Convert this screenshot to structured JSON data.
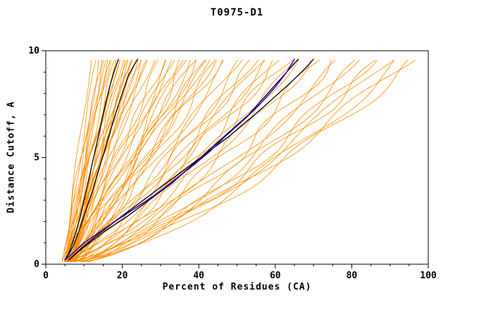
{
  "chart_data": {
    "type": "line",
    "title": "T0975-D1",
    "xlabel": "Percent of Residues (CA)",
    "ylabel": "Distance Cutoff, A",
    "xlim": [
      0,
      100
    ],
    "ylim": [
      0,
      10
    ],
    "x_ticks": [
      0,
      20,
      40,
      60,
      80,
      100
    ],
    "x_minor_step": 5,
    "y_ticks": [
      0,
      5,
      10
    ],
    "y_minor_step": 1,
    "y_top": 9.6,
    "grid": false,
    "legend": "none",
    "colors": {
      "model": "#ff8c00",
      "reference": "#000000",
      "highlight": "#2b00cc",
      "axis": "#000000"
    },
    "model_curves": [
      [
        5,
        12,
        1.2
      ],
      [
        5.5,
        13,
        1.15
      ],
      [
        6,
        14,
        1.1
      ],
      [
        4.5,
        15,
        1.25
      ],
      [
        5,
        15,
        1.0
      ],
      [
        6,
        16,
        1.2
      ],
      [
        5.5,
        16,
        1.05
      ],
      [
        6.5,
        17,
        1.15
      ],
      [
        5,
        17,
        1.3
      ],
      [
        6,
        18,
        1.1
      ],
      [
        7,
        18,
        0.95
      ],
      [
        5.5,
        19,
        1.2
      ],
      [
        6.5,
        19,
        1.05
      ],
      [
        5,
        20,
        1.25
      ],
      [
        7,
        20,
        1.1
      ],
      [
        6,
        21,
        1.0
      ],
      [
        7.5,
        21,
        1.15
      ],
      [
        5.5,
        22,
        1.2
      ],
      [
        6.5,
        22,
        1.0
      ],
      [
        6,
        23,
        1.1
      ],
      [
        7,
        23,
        1.25
      ],
      [
        5.5,
        24,
        1.05
      ],
      [
        6.5,
        24,
        1.15
      ],
      [
        6,
        25,
        1.0
      ],
      [
        7,
        25,
        1.2
      ],
      [
        6.5,
        26,
        1.1
      ],
      [
        6,
        27,
        1.05
      ],
      [
        7,
        28,
        1.15
      ],
      [
        5,
        30,
        0.95
      ],
      [
        6,
        31,
        1.05
      ],
      [
        5.5,
        32,
        0.9
      ],
      [
        6.5,
        33,
        1.0
      ],
      [
        5,
        34,
        1.1
      ],
      [
        6,
        35,
        0.95
      ],
      [
        7,
        36,
        0.85
      ],
      [
        5.5,
        37,
        1.0
      ],
      [
        6.5,
        38,
        0.9
      ],
      [
        6,
        39,
        1.05
      ],
      [
        5,
        40,
        0.95
      ],
      [
        7,
        41,
        0.85
      ],
      [
        6,
        42,
        1.0
      ],
      [
        5.5,
        43,
        0.9
      ],
      [
        6.5,
        44,
        0.95
      ],
      [
        6,
        45,
        0.85
      ],
      [
        5,
        46,
        1.0
      ],
      [
        6.5,
        48,
        0.9
      ],
      [
        6,
        50,
        0.85
      ],
      [
        5.5,
        52,
        0.85
      ],
      [
        6,
        54,
        0.8
      ],
      [
        6.5,
        55,
        0.9
      ],
      [
        5,
        57,
        0.8
      ],
      [
        6,
        58,
        0.85
      ],
      [
        6.5,
        60,
        0.75
      ],
      [
        5.5,
        61,
        0.85
      ],
      [
        6,
        63,
        0.8
      ],
      [
        5,
        65,
        0.75
      ],
      [
        6.5,
        67,
        0.8
      ],
      [
        6,
        69,
        0.75
      ],
      [
        5.5,
        72,
        0.75
      ],
      [
        6,
        75,
        0.7
      ],
      [
        5,
        78,
        0.75
      ],
      [
        6.5,
        80,
        0.7
      ],
      [
        6,
        83,
        0.72
      ],
      [
        5.5,
        85,
        0.68
      ],
      [
        6,
        88,
        0.72
      ],
      [
        5,
        90,
        0.7
      ],
      [
        6,
        93,
        0.68
      ],
      [
        5.5,
        95,
        0.72
      ],
      [
        6,
        97,
        0.7
      ]
    ],
    "reference_curves": [
      [
        [
          5,
          0.2
        ],
        [
          6,
          0.5
        ],
        [
          7,
          1
        ],
        [
          8,
          1.6
        ],
        [
          9,
          2.2
        ],
        [
          10,
          3
        ],
        [
          11,
          3.8
        ],
        [
          12,
          4.6
        ],
        [
          13,
          5.4
        ],
        [
          14,
          6.2
        ],
        [
          15,
          7
        ],
        [
          16,
          7.8
        ],
        [
          17,
          8.5
        ],
        [
          18,
          9.1
        ],
        [
          19,
          9.6
        ]
      ],
      [
        [
          5,
          0.2
        ],
        [
          6.5,
          0.6
        ],
        [
          8,
          1.2
        ],
        [
          9.5,
          2
        ],
        [
          11,
          2.8
        ],
        [
          12.5,
          3.6
        ],
        [
          14,
          4.5
        ],
        [
          15.5,
          5.4
        ],
        [
          17,
          6.3
        ],
        [
          18.5,
          7.2
        ],
        [
          20,
          8
        ],
        [
          21.5,
          8.8
        ],
        [
          23,
          9.3
        ],
        [
          24,
          9.6
        ]
      ],
      [
        [
          6,
          0.2
        ],
        [
          10,
          0.8
        ],
        [
          15,
          1.5
        ],
        [
          21,
          2.2
        ],
        [
          27,
          3
        ],
        [
          33,
          3.8
        ],
        [
          38,
          4.6
        ],
        [
          43,
          5.4
        ],
        [
          48,
          6.2
        ],
        [
          53,
          7
        ],
        [
          57,
          7.8
        ],
        [
          61,
          8.6
        ],
        [
          64,
          9.2
        ],
        [
          66,
          9.6
        ]
      ],
      [
        [
          6,
          0.2
        ],
        [
          9,
          0.7
        ],
        [
          13,
          1.3
        ],
        [
          18,
          2
        ],
        [
          24,
          2.8
        ],
        [
          30,
          3.6
        ],
        [
          36,
          4.4
        ],
        [
          42,
          5.2
        ],
        [
          48,
          6
        ],
        [
          54,
          6.9
        ],
        [
          59,
          7.7
        ],
        [
          64,
          8.5
        ],
        [
          68,
          9.2
        ],
        [
          70,
          9.6
        ]
      ]
    ],
    "highlight_curve": [
      [
        5,
        0.2
      ],
      [
        7,
        0.5
      ],
      [
        10,
        1
      ],
      [
        14,
        1.5
      ],
      [
        18,
        2
      ],
      [
        24,
        2.7
      ],
      [
        29,
        3.3
      ],
      [
        34,
        4
      ],
      [
        39,
        4.7
      ],
      [
        43,
        5.3
      ],
      [
        47,
        6
      ],
      [
        52,
        6.8
      ],
      [
        56,
        7.5
      ],
      [
        60,
        8.3
      ],
      [
        63,
        9
      ],
      [
        65,
        9.6
      ]
    ]
  }
}
